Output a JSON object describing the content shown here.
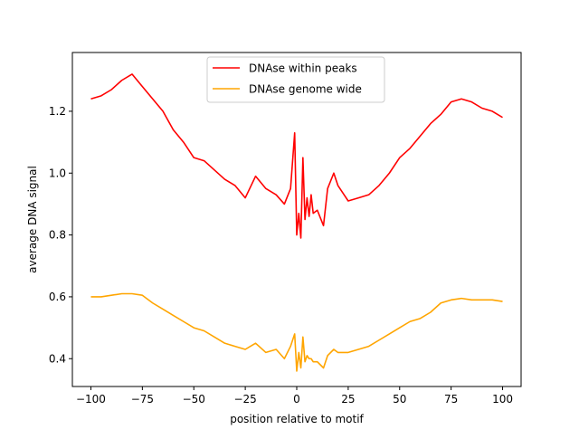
{
  "chart_data": {
    "type": "line",
    "title": "",
    "xlabel": "position relative to motif",
    "ylabel": "average DNA signal",
    "xlim": [
      -109,
      109
    ],
    "ylim": [
      0.31,
      1.39
    ],
    "xticks": [
      -100,
      -75,
      -50,
      -25,
      0,
      25,
      50,
      75,
      100
    ],
    "xtick_labels": [
      "−100",
      "−75",
      "−50",
      "−25",
      "0",
      "25",
      "50",
      "75",
      "100"
    ],
    "yticks": [
      0.4,
      0.6,
      0.8,
      1.0,
      1.2
    ],
    "ytick_labels": [
      "0.4",
      "0.6",
      "0.8",
      "1.0",
      "1.2"
    ],
    "grid": false,
    "legend_position": "top-center",
    "x": [
      -100,
      -95,
      -90,
      -85,
      -80,
      -75,
      -70,
      -65,
      -60,
      -55,
      -50,
      -45,
      -40,
      -35,
      -30,
      -25,
      -20,
      -15,
      -10,
      -6,
      -3,
      -1,
      0,
      1,
      2,
      3,
      4,
      5,
      6,
      7,
      8,
      10,
      13,
      15,
      18,
      20,
      25,
      30,
      35,
      40,
      45,
      50,
      55,
      60,
      65,
      70,
      75,
      80,
      85,
      90,
      95,
      100
    ],
    "series": [
      {
        "name": "DNAse within peaks",
        "color": "#ff0000",
        "values": [
          1.24,
          1.25,
          1.27,
          1.3,
          1.32,
          1.28,
          1.24,
          1.2,
          1.14,
          1.1,
          1.05,
          1.04,
          1.01,
          0.98,
          0.96,
          0.92,
          0.99,
          0.95,
          0.93,
          0.9,
          0.95,
          1.13,
          0.8,
          0.87,
          0.79,
          1.05,
          0.85,
          0.92,
          0.86,
          0.93,
          0.87,
          0.88,
          0.83,
          0.95,
          1.0,
          0.96,
          0.91,
          0.92,
          0.93,
          0.96,
          1.0,
          1.05,
          1.08,
          1.12,
          1.16,
          1.19,
          1.23,
          1.24,
          1.23,
          1.21,
          1.2,
          1.18
        ]
      },
      {
        "name": "DNAse genome wide",
        "color": "#ffa500",
        "values": [
          0.6,
          0.6,
          0.605,
          0.61,
          0.61,
          0.605,
          0.58,
          0.56,
          0.54,
          0.52,
          0.5,
          0.49,
          0.47,
          0.45,
          0.44,
          0.43,
          0.45,
          0.42,
          0.43,
          0.4,
          0.44,
          0.48,
          0.36,
          0.42,
          0.37,
          0.47,
          0.39,
          0.41,
          0.4,
          0.4,
          0.39,
          0.39,
          0.37,
          0.41,
          0.43,
          0.42,
          0.42,
          0.43,
          0.44,
          0.46,
          0.48,
          0.5,
          0.52,
          0.53,
          0.55,
          0.58,
          0.59,
          0.595,
          0.59,
          0.59,
          0.59,
          0.585
        ]
      }
    ]
  }
}
